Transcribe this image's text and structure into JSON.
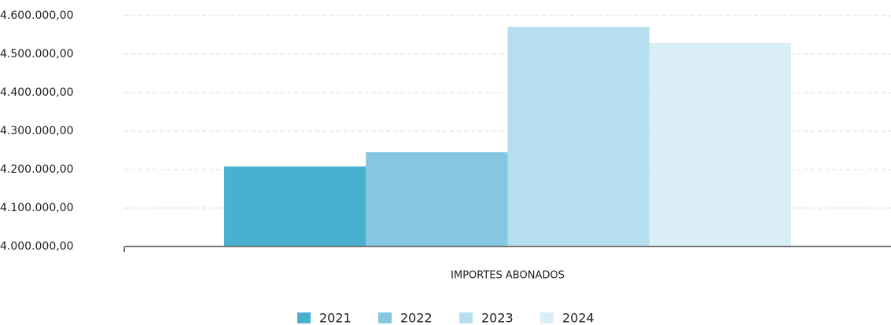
{
  "chart_data": {
    "type": "bar",
    "categories": [
      "IMPORTES ABONADOS"
    ],
    "series": [
      {
        "name": "2021",
        "color": "#4ab0d0",
        "values": [
          4208000
        ]
      },
      {
        "name": "2022",
        "color": "#85c6e1",
        "values": [
          4245000
        ]
      },
      {
        "name": "2023",
        "color": "#b5dfee",
        "values": [
          4571000
        ]
      },
      {
        "name": "2024",
        "color": "#daeef5",
        "values": [
          4529000
        ]
      }
    ],
    "ylim": [
      4000000,
      4600000
    ],
    "yticks": [
      {
        "value": 4000000,
        "label": "4.000.000,00"
      },
      {
        "value": 4100000,
        "label": "4.100.000,00"
      },
      {
        "value": 4200000,
        "label": "4.200.000,00"
      },
      {
        "value": 4300000,
        "label": "4.300.000,00"
      },
      {
        "value": 4400000,
        "label": "4.400.000,00"
      },
      {
        "value": 4500000,
        "label": "4.500.000,00"
      },
      {
        "value": 4600000,
        "label": "4.600.000,00"
      }
    ],
    "grid": true,
    "legend": "bottom"
  }
}
